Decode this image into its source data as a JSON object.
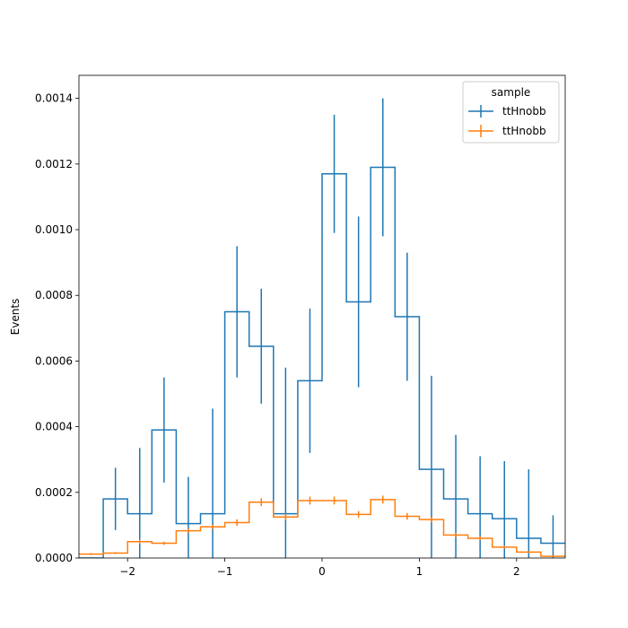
{
  "chart_data": {
    "type": "line",
    "drawstyle": "step-histogram-with-errorbars",
    "title": "",
    "xlabel": "",
    "ylabel": "Events",
    "xlim": [
      -2.5,
      2.5
    ],
    "ylim": [
      0,
      0.00147
    ],
    "xticks": [
      -2,
      -1,
      0,
      1,
      2
    ],
    "xtick_labels": [
      "−2",
      "−1",
      "0",
      "1",
      "2"
    ],
    "yticks": [
      0,
      0.0002,
      0.0004,
      0.0006,
      0.0008,
      0.001,
      0.0012,
      0.0014
    ],
    "ytick_labels": [
      "0.0000",
      "0.0002",
      "0.0004",
      "0.0006",
      "0.0008",
      "0.0010",
      "0.0012",
      "0.0014"
    ],
    "grid": false,
    "legend": {
      "title": "sample",
      "placement": "top-right"
    },
    "bin_edges": [
      -2.5,
      -2.25,
      -2.0,
      -1.75,
      -1.5,
      -1.25,
      -1.0,
      -0.75,
      -0.5,
      -0.25,
      0.0,
      0.25,
      0.5,
      0.75,
      1.0,
      1.25,
      1.5,
      1.75,
      2.0,
      2.25,
      2.5
    ],
    "series": [
      {
        "name": "ttHnobb",
        "color": "#1f77b4",
        "values": [
          0,
          0.00018,
          0.000135,
          0.00039,
          0.000105,
          0.000135,
          0.00075,
          0.000645,
          0.000135,
          0.00054,
          0.00117,
          0.00078,
          0.00119,
          0.000735,
          0.00027,
          0.00018,
          0.000135,
          0.00012,
          6e-05,
          4.5e-05
        ],
        "errors": [
          0,
          9.5e-05,
          0.0002,
          0.00016,
          0.000142,
          0.00032,
          0.0002,
          0.000175,
          0.000445,
          0.00022,
          0.00018,
          0.00026,
          0.00021,
          0.000195,
          0.000285,
          0.000195,
          0.000175,
          0.000175,
          0.00021,
          8.5e-05
        ]
      },
      {
        "name": "ttHnobb",
        "color": "#ff7f0e",
        "values": [
          1.2e-05,
          1.5e-05,
          5e-05,
          4.5e-05,
          8.3e-05,
          9.5e-05,
          0.000108,
          0.00017,
          0.000125,
          0.000175,
          0.000175,
          0.000133,
          0.000178,
          0.000127,
          0.000117,
          7e-05,
          6e-05,
          3.3e-05,
          1.8e-05,
          5e-06
        ],
        "errors": [
          3e-06,
          3e-06,
          6e-06,
          5e-06,
          7e-06,
          7e-06,
          1e-05,
          1.2e-05,
          1e-05,
          1.2e-05,
          1.2e-05,
          1e-05,
          1.2e-05,
          1e-05,
          9e-06,
          7e-06,
          6e-06,
          4e-06,
          3e-06,
          2e-06
        ]
      }
    ]
  }
}
